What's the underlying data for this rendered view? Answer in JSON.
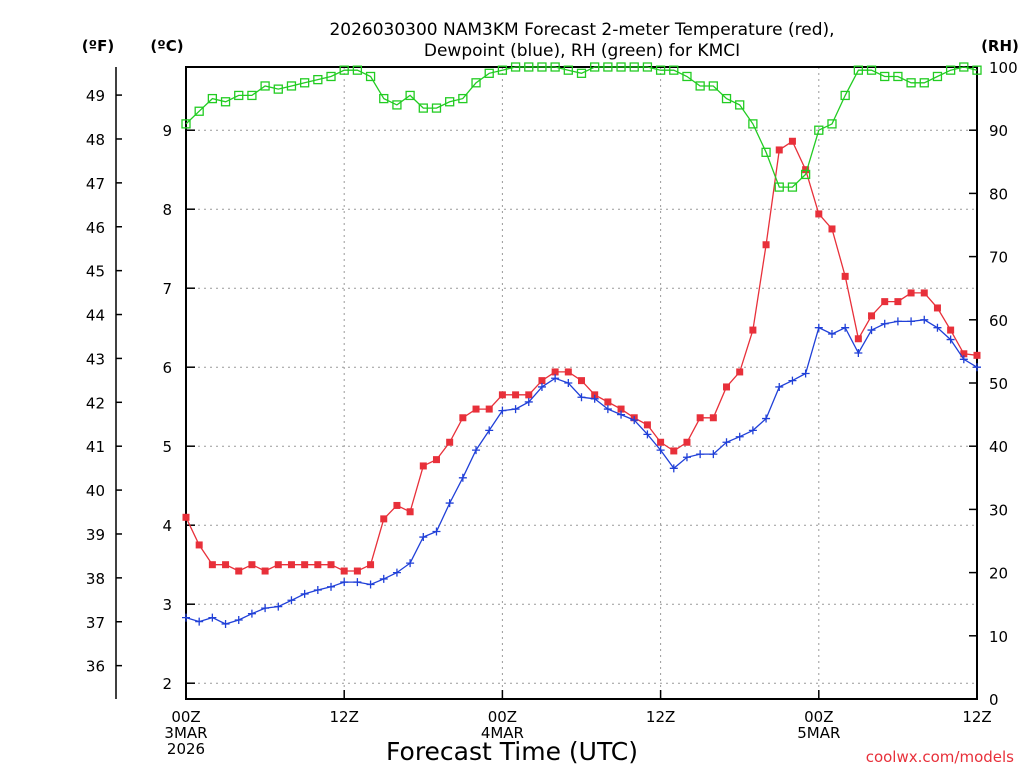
{
  "chart_data": {
    "type": "line",
    "title": [
      "2026030300 NAM3KM Forecast 2-meter Temperature (red),",
      "Dewpoint (blue), RH (green) for KMCI"
    ],
    "xlabel": "Forecast Time (UTC)",
    "credit": "coolwx.com/models",
    "units": {
      "fahrenheit": "(ºF)",
      "celsius": "(ºC)",
      "rh": "(RH)"
    },
    "x_range": [
      0,
      60
    ],
    "x_ticks": [
      {
        "x": 0,
        "lines": [
          "00Z",
          "3MAR",
          "2026"
        ]
      },
      {
        "x": 12,
        "lines": [
          "12Z"
        ]
      },
      {
        "x": 24,
        "lines": [
          "00Z",
          "4MAR"
        ]
      },
      {
        "x": 36,
        "lines": [
          "12Z"
        ]
      },
      {
        "x": 48,
        "lines": [
          "00Z",
          "5MAR"
        ]
      },
      {
        "x": 60,
        "lines": [
          "12Z"
        ]
      }
    ],
    "celsius_axis": {
      "range": [
        1.8,
        9.8
      ],
      "ticks": [
        2,
        3,
        4,
        5,
        6,
        7,
        8,
        9
      ]
    },
    "fahrenheit_axis": {
      "ticks": [
        36,
        37,
        38,
        39,
        40,
        41,
        42,
        43,
        44,
        45,
        46,
        47,
        48,
        49
      ]
    },
    "rh_axis": {
      "range": [
        0,
        100
      ],
      "ticks": [
        0,
        10,
        20,
        30,
        40,
        50,
        60,
        70,
        80,
        90,
        100
      ]
    },
    "colors": {
      "temperature": "#e8303a",
      "dewpoint": "#2040d8",
      "rh": "#22cc22"
    },
    "series": [
      {
        "name": "Temperature",
        "axis": "celsius",
        "marker": "filled-square",
        "values": [
          4.1,
          3.75,
          3.5,
          3.5,
          3.42,
          3.5,
          3.42,
          3.5,
          3.5,
          3.5,
          3.5,
          3.5,
          3.42,
          3.42,
          3.5,
          4.08,
          4.25,
          4.17,
          4.75,
          4.83,
          5.05,
          5.36,
          5.47,
          5.47,
          5.65,
          5.65,
          5.65,
          5.83,
          5.94,
          5.94,
          5.83,
          5.65,
          5.56,
          5.47,
          5.36,
          5.27,
          5.05,
          4.94,
          5.05,
          5.36,
          5.36,
          5.75,
          5.94,
          6.47,
          7.55,
          8.75,
          8.86,
          8.5,
          7.94,
          7.75,
          7.15,
          6.36,
          6.65,
          6.83,
          6.83,
          6.94,
          6.94,
          6.75,
          6.47,
          6.17,
          6.15
        ]
      },
      {
        "name": "Dewpoint",
        "axis": "celsius",
        "marker": "plus",
        "values": [
          2.83,
          2.78,
          2.83,
          2.75,
          2.8,
          2.88,
          2.95,
          2.97,
          3.05,
          3.13,
          3.18,
          3.22,
          3.28,
          3.28,
          3.25,
          3.32,
          3.4,
          3.52,
          3.85,
          3.92,
          4.28,
          4.6,
          4.95,
          5.2,
          5.45,
          5.47,
          5.56,
          5.75,
          5.86,
          5.8,
          5.62,
          5.6,
          5.47,
          5.4,
          5.33,
          5.15,
          4.95,
          4.72,
          4.86,
          4.9,
          4.9,
          5.05,
          5.12,
          5.2,
          5.35,
          5.75,
          5.83,
          5.92,
          6.5,
          6.42,
          6.5,
          6.18,
          6.47,
          6.55,
          6.58,
          6.58,
          6.6,
          6.5,
          6.35,
          6.1,
          6.0
        ]
      },
      {
        "name": "RH",
        "axis": "rh",
        "marker": "open-square",
        "values": [
          91,
          93,
          95,
          94.5,
          95.5,
          95.5,
          97,
          96.5,
          97,
          97.5,
          98,
          98.5,
          99.5,
          99.5,
          98.5,
          95,
          94,
          95.5,
          93.5,
          93.5,
          94.5,
          95,
          97.5,
          99,
          99.5,
          100,
          100,
          100,
          100,
          99.5,
          99,
          100,
          100,
          100,
          100,
          100,
          99.5,
          99.5,
          98.5,
          97,
          97,
          95,
          94,
          91,
          86.5,
          81,
          81,
          83,
          90,
          91,
          95.5,
          99.5,
          99.5,
          98.5,
          98.5,
          97.5,
          97.5,
          98.5,
          99.5,
          100,
          99.5
        ]
      }
    ]
  }
}
